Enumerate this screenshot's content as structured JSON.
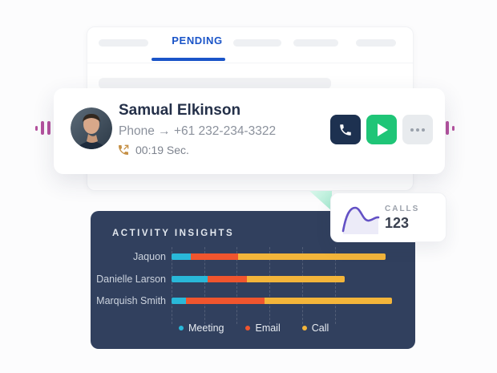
{
  "tabs_card": {
    "active_tab": "PENDING"
  },
  "contact_card": {
    "name": "Samual Elkinson",
    "phone_label": "Phone",
    "phone_arrow": "→",
    "phone_number": "+61 232-234-3322",
    "call_duration": "00:19 Sec."
  },
  "stat_card": {
    "label": "CALLS",
    "value": "123"
  },
  "chart_data": {
    "type": "bar",
    "orientation": "horizontal",
    "stacked": true,
    "title": "ACTIVITY INSIGHTS",
    "categories": [
      "Jaquon",
      "Danielle Larson",
      "Marquish Smith"
    ],
    "series": [
      {
        "name": "Meeting",
        "color": "#29b8d9",
        "values": [
          6,
          11,
          4.5
        ]
      },
      {
        "name": "Email",
        "color": "#f0552e",
        "values": [
          14.5,
          12,
          24
        ]
      },
      {
        "name": "Call",
        "color": "#f3b53a",
        "values": [
          45,
          30,
          39
        ]
      }
    ],
    "xlim": [
      0,
      70
    ],
    "gridline_units": [
      0,
      10,
      20,
      30,
      40,
      50
    ],
    "grid": "dashed-vertical",
    "legend_position": "bottom",
    "background": "#31405e"
  },
  "colors": {
    "accent_blue": "#1a54c8",
    "navy": "#1d3150",
    "green": "#1fc577",
    "pink": "#b4519e",
    "mint": "#a5ead0",
    "purple": "#6351c5",
    "chart_bg": "#31405e",
    "bar_blue": "#29b8d9",
    "bar_orange": "#f0552e",
    "bar_yellow": "#f3b53a"
  }
}
